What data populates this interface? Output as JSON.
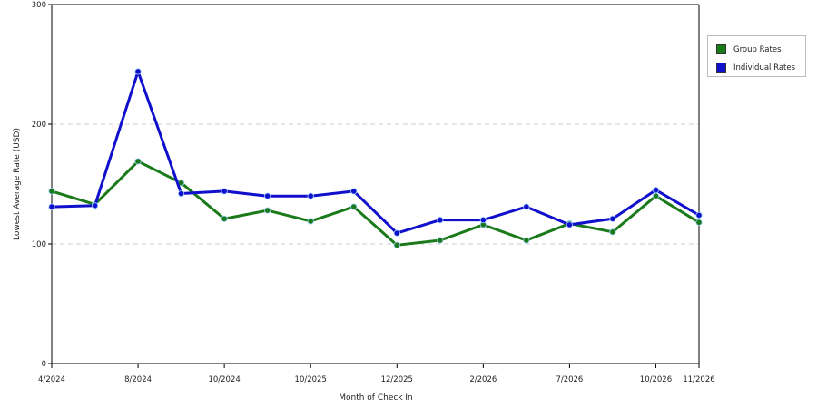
{
  "chart_data": {
    "type": "line",
    "xlabel": "Month of Check In",
    "ylabel": "Lowest Average Rate (USD)",
    "ylim": [
      0,
      300
    ],
    "y_ticks": [
      0,
      100,
      200,
      300
    ],
    "grid": true,
    "legend_position": "right",
    "x_tick_labels": [
      {
        "index": 0,
        "label": "4/2024"
      },
      {
        "index": 2,
        "label": "8/2024"
      },
      {
        "index": 4,
        "label": "10/2024"
      },
      {
        "index": 6,
        "label": "10/2025"
      },
      {
        "index": 8,
        "label": "12/2025"
      },
      {
        "index": 10,
        "label": "2/2026"
      },
      {
        "index": 12,
        "label": "7/2026"
      },
      {
        "index": 14,
        "label": "10/2026"
      },
      {
        "index": 15,
        "label": "11/2026"
      }
    ],
    "point_count": 16,
    "series": [
      {
        "name": "Group Rates",
        "color": "#1a7a1a",
        "values": [
          144,
          133,
          169,
          151,
          121,
          128,
          119,
          131,
          99,
          103,
          116,
          103,
          117,
          110,
          140,
          118
        ]
      },
      {
        "name": "Individual Rates",
        "color": "#1010cc",
        "values": [
          131,
          132,
          244,
          142,
          144,
          140,
          140,
          144,
          109,
          120,
          120,
          131,
          116,
          121,
          145,
          124
        ]
      }
    ]
  }
}
